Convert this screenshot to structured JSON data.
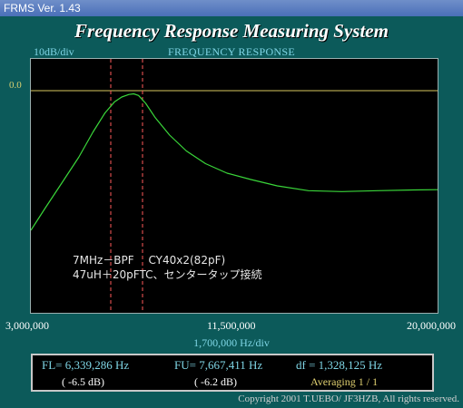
{
  "window": {
    "title": "FRMS   Ver. 1.43"
  },
  "app_title": "Frequency Response Measuring System",
  "graph": {
    "scale_label": "10dB/div",
    "title": "FREQUENCY RESPONSE",
    "ref_label": "0.0",
    "x_start": "3,000,000",
    "x_mid": "11,500,000",
    "x_end": "20,000,000",
    "x_div": "1,700,000  Hz/div",
    "note_line1": "7MHz－BPF　 CY40x2(82pF)",
    "note_line2": "47uH＋20pFTC、センタータップ接続"
  },
  "chart_data": {
    "type": "line",
    "x_unit": "Hz",
    "y_unit": "dB",
    "xlim": [
      3000000,
      20000000
    ],
    "ylim": [
      -70,
      10
    ],
    "x_div": 1700000,
    "y_div": 10,
    "grid": false,
    "reference_db": 0.0,
    "markers": [
      {
        "label": "FL",
        "x": 6339286
      },
      {
        "label": "FU",
        "x": 7667411
      }
    ],
    "series": [
      {
        "color": "#3ad63a",
        "x": [
          3000000,
          3600000,
          4300000,
          5000000,
          5600000,
          6100000,
          6500000,
          6800000,
          7100000,
          7300000,
          7500000,
          7800000,
          8200000,
          8800000,
          9500000,
          10300000,
          11200000,
          12200000,
          13300000,
          14600000,
          16000000,
          17500000,
          19000000,
          20000000
        ],
        "y": [
          -44,
          -37,
          -29,
          -21,
          -13,
          -7,
          -3.5,
          -2,
          -1.2,
          -1,
          -1.5,
          -4,
          -8.5,
          -14,
          -19,
          -23,
          -26,
          -28,
          -30,
          -31.5,
          -31.8,
          -31.5,
          -31.3,
          -31.2
        ]
      }
    ]
  },
  "readout": {
    "fl": "FL= 6,339,286  Hz",
    "fl_db": "( -6.5 dB)",
    "fu": "FU= 7,667,411  Hz",
    "fu_db": "( -6.2 dB)",
    "df": "df = 1,328,125  Hz",
    "averaging": "Averaging   1 / 1"
  },
  "footer": {
    "copyright": "Copyright 2001 T.UEBO/ JF3HZB, All rights reserved."
  },
  "colors": {
    "background": "#0c5a5a",
    "plot_bg": "#000000",
    "trace": "#3ad63a",
    "marker": "#ff5a5a",
    "reference_line": "#d8c860",
    "label_cyan": "#7fd6e6"
  }
}
